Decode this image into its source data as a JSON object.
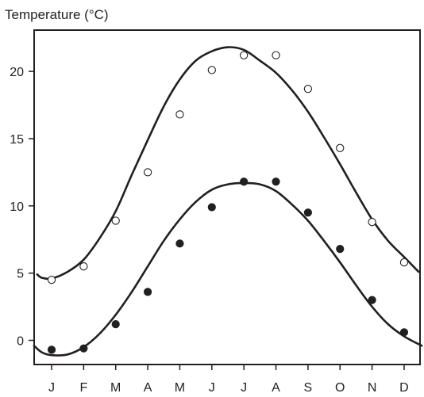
{
  "chart_data": {
    "type": "scatter",
    "ylabel": "Temperature (°C)",
    "categories": [
      "J",
      "F",
      "M",
      "A",
      "M",
      "J",
      "J",
      "A",
      "S",
      "O",
      "N",
      "D"
    ],
    "y_ticks": [
      0,
      5,
      10,
      15,
      20
    ],
    "ylim": [
      -2,
      23
    ],
    "grid": false,
    "series": [
      {
        "marker": "open-circle",
        "color": "#231f20",
        "values": [
          4.5,
          5.5,
          8.9,
          12.5,
          16.8,
          20.1,
          21.2,
          21.2,
          18.7,
          14.3,
          8.8,
          5.8
        ],
        "curve": [
          [
            -0.45,
            4.9
          ],
          [
            -0.3,
            4.65
          ],
          [
            0,
            4.6
          ],
          [
            0.5,
            5.1
          ],
          [
            1.0,
            6.0
          ],
          [
            1.5,
            7.6
          ],
          [
            2.0,
            9.6
          ],
          [
            2.5,
            12.3
          ],
          [
            3.0,
            14.9
          ],
          [
            3.5,
            17.4
          ],
          [
            4.0,
            19.4
          ],
          [
            4.5,
            20.8
          ],
          [
            5.0,
            21.5
          ],
          [
            5.5,
            21.8
          ],
          [
            6.0,
            21.6
          ],
          [
            6.5,
            20.8
          ],
          [
            7.0,
            19.9
          ],
          [
            7.5,
            18.6
          ],
          [
            8.0,
            17.0
          ],
          [
            8.5,
            15.1
          ],
          [
            9.0,
            13.1
          ],
          [
            9.5,
            11.0
          ],
          [
            10.0,
            9.0
          ],
          [
            10.5,
            7.4
          ],
          [
            11.0,
            6.2
          ],
          [
            11.45,
            5.1
          ]
        ]
      },
      {
        "marker": "filled-circle",
        "color": "#231f20",
        "values": [
          -0.7,
          -0.6,
          1.2,
          3.6,
          7.2,
          9.9,
          11.8,
          11.8,
          9.5,
          6.8,
          3.0,
          0.6
        ],
        "curve": [
          [
            -0.55,
            -0.4
          ],
          [
            -0.3,
            -0.9
          ],
          [
            0,
            -1.1
          ],
          [
            0.5,
            -1.05
          ],
          [
            1.0,
            -0.5
          ],
          [
            1.5,
            0.5
          ],
          [
            2.0,
            1.9
          ],
          [
            2.5,
            3.6
          ],
          [
            3.0,
            5.5
          ],
          [
            3.5,
            7.4
          ],
          [
            4.0,
            9.0
          ],
          [
            4.5,
            10.3
          ],
          [
            5.0,
            11.2
          ],
          [
            5.5,
            11.6
          ],
          [
            6.0,
            11.7
          ],
          [
            6.5,
            11.6
          ],
          [
            7.0,
            11.1
          ],
          [
            7.5,
            10.1
          ],
          [
            8.0,
            8.9
          ],
          [
            8.5,
            7.4
          ],
          [
            9.0,
            5.8
          ],
          [
            9.5,
            4.1
          ],
          [
            10.0,
            2.5
          ],
          [
            10.5,
            1.2
          ],
          [
            11.0,
            0.3
          ],
          [
            11.55,
            -0.4
          ]
        ]
      }
    ]
  }
}
